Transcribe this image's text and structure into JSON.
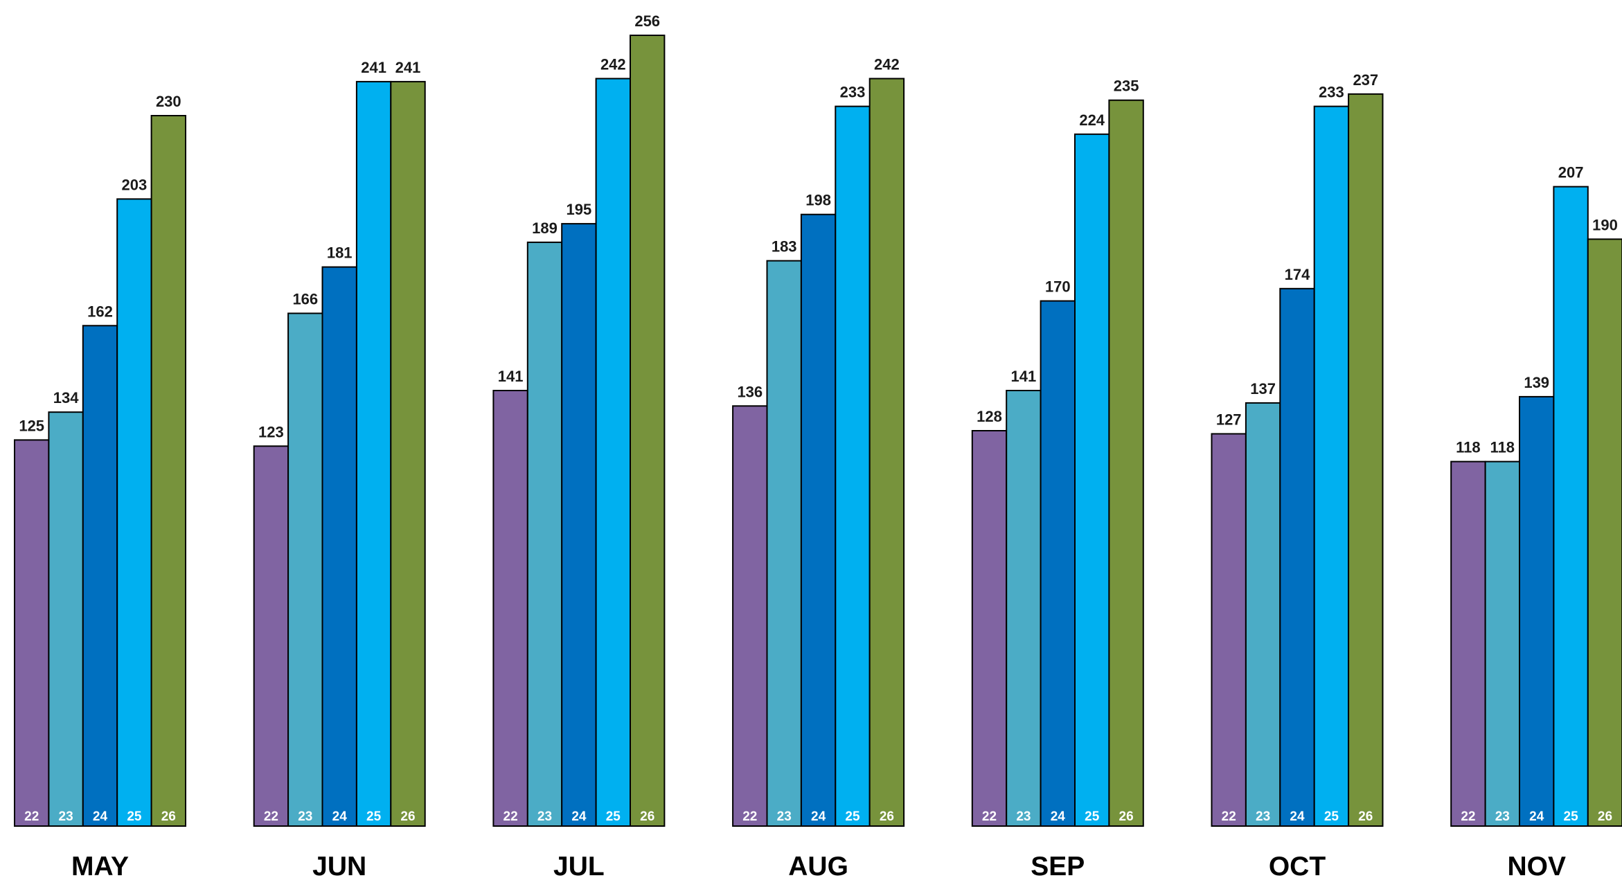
{
  "chart_data": {
    "type": "bar",
    "categories": [
      "MAY",
      "JUN",
      "JUL",
      "AUG",
      "SEP",
      "OCT",
      "NOV"
    ],
    "series": [
      {
        "name": "22",
        "color": "#8064A2",
        "values": [
          125,
          123,
          141,
          136,
          128,
          127,
          118
        ]
      },
      {
        "name": "23",
        "color": "#4BACC6",
        "values": [
          134,
          166,
          189,
          183,
          141,
          137,
          118
        ]
      },
      {
        "name": "24",
        "color": "#0070C0",
        "values": [
          162,
          181,
          195,
          198,
          170,
          174,
          139
        ]
      },
      {
        "name": "25",
        "color": "#00B0F0",
        "values": [
          203,
          241,
          242,
          233,
          224,
          233,
          207
        ]
      },
      {
        "name": "26",
        "color": "#77933C",
        "values": [
          230,
          241,
          256,
          242,
          235,
          237,
          190
        ]
      }
    ],
    "ylim": [
      0,
      256
    ],
    "grid": false,
    "legend": "none",
    "data_labels": true
  }
}
